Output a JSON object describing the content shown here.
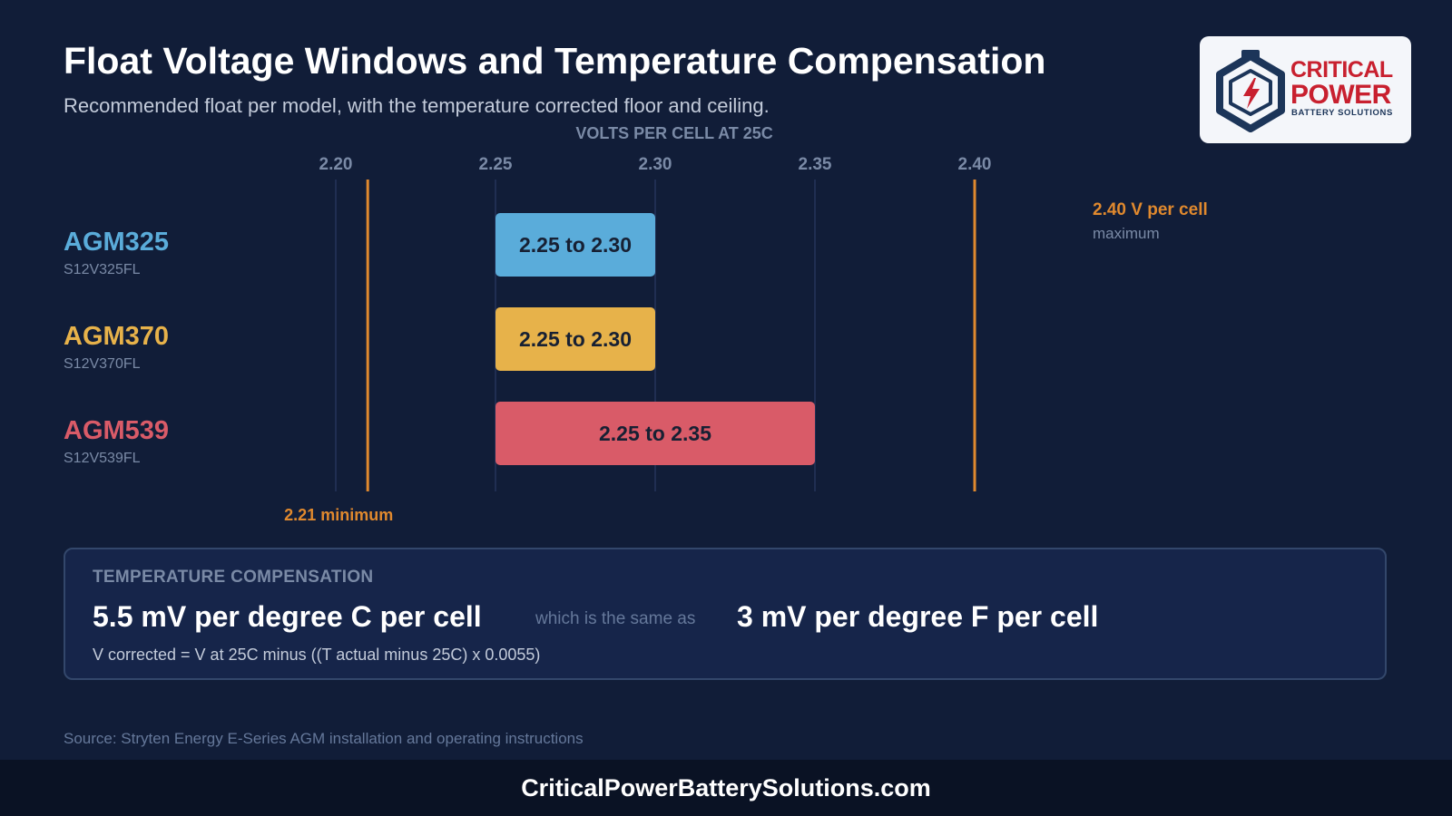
{
  "header": {
    "title": "Float Voltage Windows and Temperature Compensation",
    "subtitle": "Recommended float per model, with the temperature corrected floor and ceiling."
  },
  "logo": {
    "line1": "CRITICAL",
    "line2": "POWER",
    "line3": "BATTERY SOLUTIONS"
  },
  "chart_data": {
    "type": "bar",
    "orientation": "horizontal-range",
    "xlabel": "VOLTS PER CELL AT 25C",
    "xticks": [
      "2.20",
      "2.25",
      "2.30",
      "2.35",
      "2.40"
    ],
    "xlim": [
      2.2,
      2.4
    ],
    "grid": true,
    "series": [
      {
        "name": "AGM325",
        "model": "S12V325FL",
        "low": 2.25,
        "high": 2.3,
        "label": "2.25 to 2.30",
        "color": "#5aacda"
      },
      {
        "name": "AGM370",
        "model": "S12V370FL",
        "low": 2.25,
        "high": 2.3,
        "label": "2.25 to 2.30",
        "color": "#e7b24a"
      },
      {
        "name": "AGM539",
        "model": "S12V539FL",
        "low": 2.25,
        "high": 2.35,
        "label": "2.25 to 2.35",
        "color": "#d95b68"
      }
    ],
    "reference_lines": [
      {
        "value": 2.21,
        "label": "2.21 minimum",
        "sublabel": "",
        "color": "#e0892e"
      },
      {
        "value": 2.4,
        "label": "2.40 V per cell",
        "sublabel": "maximum",
        "color": "#e0892e"
      }
    ]
  },
  "temperature": {
    "heading": "TEMPERATURE COMPENSATION",
    "per_c": "5.5 mV per degree C per cell",
    "same_as": "which is the same as",
    "per_f": "3 mV per degree F per cell",
    "formula": "V corrected = V at 25C minus ((T actual minus 25C) x 0.0055)"
  },
  "source": "Source: Stryten Energy E-Series AGM installation and operating instructions",
  "footer": "CriticalPowerBatterySolutions.com"
}
